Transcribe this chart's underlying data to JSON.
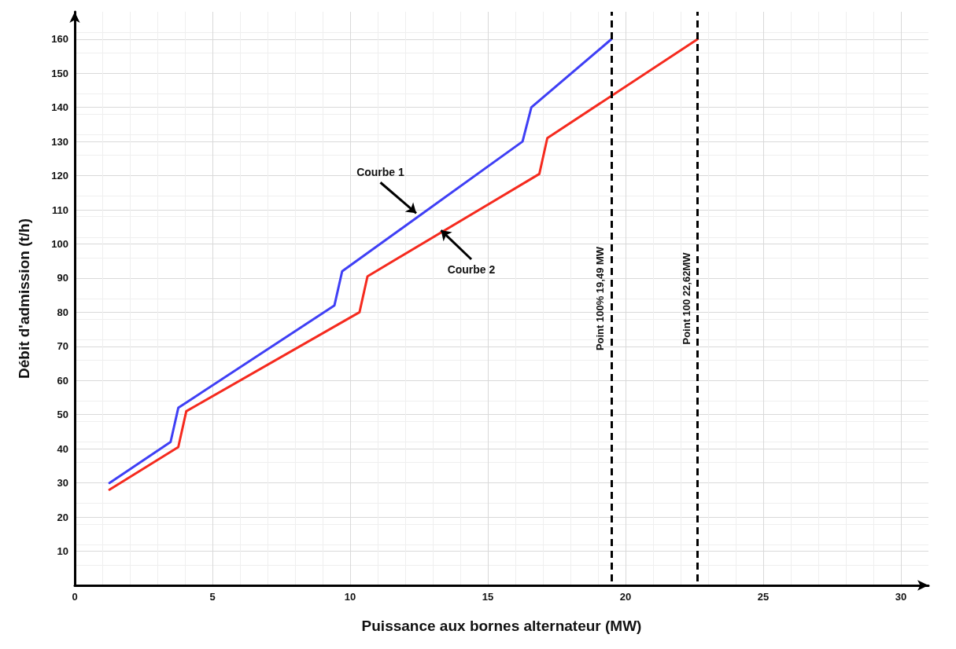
{
  "chart_data": {
    "type": "line",
    "xlabel": "Puissance aux bornes alternateur (MW)",
    "ylabel": "Débit d'admission (t/h)",
    "series": [
      {
        "color": "#3f3ff5",
        "x": [
          1.26,
          3.48,
          3.76,
          9.43,
          9.71,
          16.26,
          16.58,
          19.49
        ],
        "values": [
          30,
          42,
          52,
          82,
          92,
          130,
          140,
          160
        ]
      },
      {
        "color": "#f52a1e",
        "x": [
          1.26,
          3.76,
          4.05,
          10.34,
          10.63,
          16.87,
          17.16,
          22.62
        ],
        "values": [
          28,
          40.5,
          51,
          80,
          90.5,
          120.5,
          131,
          160
        ]
      }
    ],
    "annotations": [
      {
        "text": "Courbe 1",
        "x": 12.4,
        "y": 109
      },
      {
        "text": "Courbe 2",
        "x": 13.3,
        "y": 104
      }
    ],
    "ref_lines": [
      {
        "axis": "x",
        "value": 19.49,
        "label": "Point 100% 19,49 MW",
        "color": "#000000",
        "line_style": "dashed"
      },
      {
        "axis": "x",
        "value": 22.62,
        "label": "Point 100 22,62MW",
        "color": "#000000",
        "line_style": "dashed"
      }
    ],
    "xlim": [
      0,
      31
    ],
    "xticks": [
      0,
      5,
      10,
      15,
      20,
      25,
      30
    ],
    "ylim": [
      0,
      168
    ],
    "yticks": [
      10,
      20,
      30,
      40,
      50,
      60,
      70,
      80,
      90,
      100,
      110,
      120,
      130,
      140,
      150,
      160
    ],
    "grid": true,
    "marker": "none",
    "line_style": "solid"
  }
}
